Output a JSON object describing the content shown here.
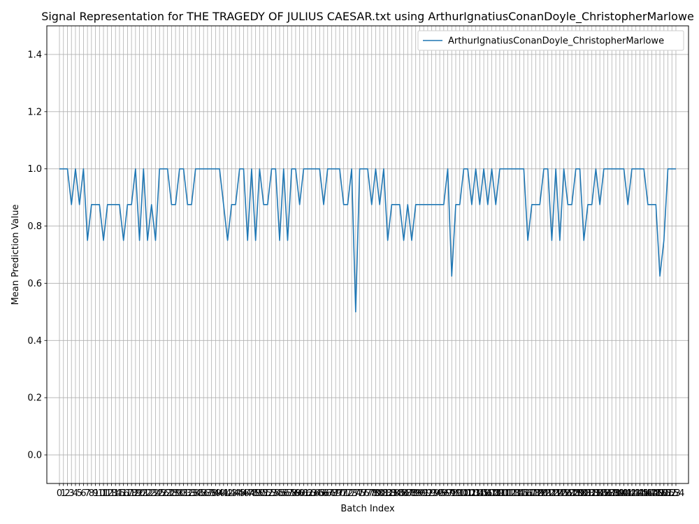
{
  "chart_data": {
    "type": "line",
    "title": "Signal Representation for THE TRAGEDY OF JULIUS CAESAR.txt using ArthurIgnatiusConanDoyle_ChristopherMarlowe",
    "xlabel": "Batch Index",
    "ylabel": "Mean Prediction Value",
    "xlim": [
      -3.15,
      157.15
    ],
    "ylim": [
      -0.1,
      1.5
    ],
    "yticks": [
      0.0,
      0.2,
      0.4,
      0.6,
      0.8,
      1.0,
      1.2,
      1.4
    ],
    "ytick_labels": [
      "0.0",
      "0.2",
      "0.4",
      "0.6",
      "0.8",
      "1.0",
      "1.2",
      "1.4"
    ],
    "x_ticks_every_index": true,
    "grid": true,
    "legend_position": "top-right",
    "colors": {
      "series": "#1f77b4",
      "grid": "#b0b0b0",
      "frame": "#000000"
    },
    "series": [
      {
        "name": "ArthurIgnatiusConanDoyle_ChristopherMarlowe",
        "x_start": 0,
        "values": [
          1,
          1,
          1,
          0.875,
          1,
          0.875,
          1,
          0.75,
          0.875,
          0.875,
          0.875,
          0.75,
          0.875,
          0.875,
          0.875,
          0.875,
          0.75,
          0.875,
          0.875,
          1,
          0.75,
          1,
          0.75,
          0.875,
          0.75,
          1,
          1,
          1,
          0.875,
          0.875,
          1,
          1,
          0.875,
          0.875,
          1,
          1,
          1,
          1,
          1,
          1,
          1,
          0.875,
          0.75,
          0.875,
          0.875,
          1,
          1,
          0.75,
          1,
          0.75,
          1,
          0.875,
          0.875,
          1,
          1,
          0.75,
          1,
          0.75,
          1,
          1,
          0.875,
          1,
          1,
          1,
          1,
          1,
          0.875,
          1,
          1,
          1,
          1,
          0.875,
          0.875,
          1,
          0.5,
          1,
          1,
          1,
          0.875,
          1,
          0.875,
          1,
          0.75,
          0.875,
          0.875,
          0.875,
          0.75,
          0.875,
          0.75,
          0.875,
          0.875,
          0.875,
          0.875,
          0.875,
          0.875,
          0.875,
          0.875,
          1,
          0.625,
          0.875,
          0.875,
          1,
          1,
          0.875,
          1,
          0.875,
          1,
          0.875,
          1,
          0.875,
          1,
          1,
          1,
          1,
          1,
          1,
          1,
          0.75,
          0.875,
          0.875,
          0.875,
          1,
          1,
          0.75,
          1,
          0.75,
          1,
          0.875,
          0.875,
          1,
          1,
          0.75,
          0.875,
          0.875,
          1,
          0.875,
          1,
          1,
          1,
          1,
          1,
          1,
          0.875,
          1,
          1,
          1,
          1,
          0.875,
          0.875,
          0.875,
          0.625,
          0.75,
          1,
          1,
          1
        ]
      }
    ]
  }
}
